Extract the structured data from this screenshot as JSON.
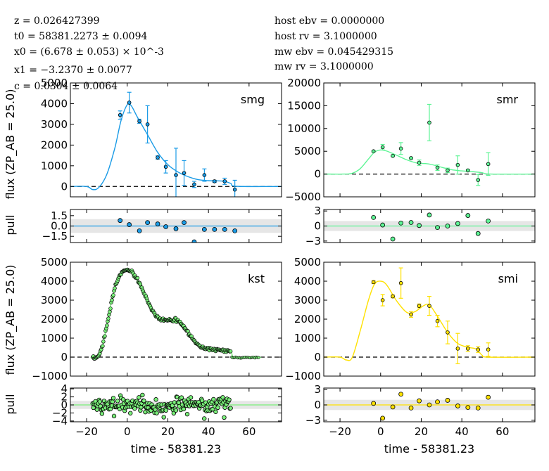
{
  "info": {
    "left": [
      "z = 0.026427399",
      "t0 = 58381.2273 ± 0.0094",
      "x0 = (6.678 ± 0.053) × 10^-3",
      "x1 = −3.2370 ± 0.0077",
      "c = 0.0304 ± 0.0064"
    ],
    "right": [
      "host ebv = 0.0000000",
      "host rv = 3.1000000",
      "mw ebv = 0.045429315",
      "mw rv = 3.1000000"
    ]
  },
  "labels": {
    "flux_ylabel": "flux (ZP_AB = 25.0)",
    "pull_ylabel": "pull",
    "xlabel": "time - 58381.23"
  },
  "chart_data": [
    {
      "type": "scatter",
      "band": "smg",
      "color": "#1a9be6",
      "xlim": [
        -28,
        76
      ],
      "xticks": [
        -20,
        0,
        20,
        40,
        60
      ],
      "ylim": [
        -500,
        5000
      ],
      "yticks": [
        0,
        1000,
        2000,
        3000,
        4000,
        5000
      ],
      "points": [
        {
          "x": -3.5,
          "y": 3450,
          "err": 200
        },
        {
          "x": 1,
          "y": 4050,
          "err": 500
        },
        {
          "x": 6,
          "y": 3150,
          "err": 100
        },
        {
          "x": 10,
          "y": 3000,
          "err": 900
        },
        {
          "x": 15,
          "y": 1400,
          "err": 80
        },
        {
          "x": 19,
          "y": 950,
          "err": 300
        },
        {
          "x": 24,
          "y": 550,
          "err": 1300
        },
        {
          "x": 28,
          "y": 650,
          "err": 600
        },
        {
          "x": 33,
          "y": 100,
          "err": 150
        },
        {
          "x": 38,
          "y": 550,
          "err": 300
        },
        {
          "x": 43,
          "y": 250,
          "err": 50
        },
        {
          "x": 48,
          "y": 250,
          "err": 150
        },
        {
          "x": 53,
          "y": -150,
          "err": 450
        }
      ],
      "model": [
        [
          -28,
          0
        ],
        [
          -20,
          0
        ],
        [
          -17,
          -150
        ],
        [
          -14,
          -50
        ],
        [
          -10,
          600
        ],
        [
          -6,
          1900
        ],
        [
          -3,
          3200
        ],
        [
          0,
          3950
        ],
        [
          2,
          3900
        ],
        [
          5,
          3350
        ],
        [
          10,
          2500
        ],
        [
          15,
          1650
        ],
        [
          20,
          1050
        ],
        [
          25,
          700
        ],
        [
          30,
          470
        ],
        [
          35,
          330
        ],
        [
          40,
          280
        ],
        [
          45,
          270
        ],
        [
          48,
          250
        ],
        [
          51,
          150
        ],
        [
          54,
          10
        ],
        [
          76,
          0
        ]
      ],
      "pulls": [
        {
          "x": -3.5,
          "y": 0.8
        },
        {
          "x": 1,
          "y": 0.2
        },
        {
          "x": 6,
          "y": -0.7
        },
        {
          "x": 10,
          "y": 0.5
        },
        {
          "x": 15,
          "y": 0.3
        },
        {
          "x": 19,
          "y": -0.1
        },
        {
          "x": 24,
          "y": -0.4
        },
        {
          "x": 28,
          "y": 0.5
        },
        {
          "x": 33,
          "y": -2.3
        },
        {
          "x": 38,
          "y": -0.5
        },
        {
          "x": 43,
          "y": -0.5
        },
        {
          "x": 48,
          "y": -0.5
        },
        {
          "x": 53,
          "y": -0.7
        }
      ],
      "pull_ylim": [
        -2.4,
        2.4
      ],
      "pull_yticks": [
        -1.5,
        0.0,
        1.5
      ]
    },
    {
      "type": "scatter",
      "band": "smr",
      "color": "#5ef595",
      "xlim": [
        -28,
        76
      ],
      "xticks": [
        -20,
        0,
        20,
        40,
        60
      ],
      "ylim": [
        -5000,
        20000
      ],
      "yticks": [
        -5000,
        0,
        5000,
        10000,
        15000,
        20000
      ],
      "points": [
        {
          "x": -3.5,
          "y": 5000,
          "err": 150
        },
        {
          "x": 1,
          "y": 5900,
          "err": 600
        },
        {
          "x": 6,
          "y": 4000,
          "err": 200
        },
        {
          "x": 10,
          "y": 5600,
          "err": 1300
        },
        {
          "x": 15,
          "y": 3500,
          "err": 200
        },
        {
          "x": 19,
          "y": 2500,
          "err": 600
        },
        {
          "x": 24,
          "y": 11300,
          "err": 4000
        },
        {
          "x": 28,
          "y": 1400,
          "err": 600
        },
        {
          "x": 33,
          "y": 800,
          "err": 500
        },
        {
          "x": 38,
          "y": 2000,
          "err": 2000
        },
        {
          "x": 43,
          "y": 800,
          "err": 200
        },
        {
          "x": 48,
          "y": -1300,
          "err": 1200
        },
        {
          "x": 53,
          "y": 2200,
          "err": 2500
        }
      ],
      "model": [
        [
          -28,
          0
        ],
        [
          -18,
          0
        ],
        [
          -14,
          150
        ],
        [
          -10,
          1200
        ],
        [
          -6,
          3300
        ],
        [
          -3,
          4800
        ],
        [
          0,
          5300
        ],
        [
          3,
          5050
        ],
        [
          8,
          4100
        ],
        [
          13,
          3100
        ],
        [
          18,
          2400
        ],
        [
          22,
          2300
        ],
        [
          25,
          2100
        ],
        [
          30,
          1500
        ],
        [
          35,
          950
        ],
        [
          40,
          700
        ],
        [
          45,
          550
        ],
        [
          50,
          300
        ],
        [
          54,
          0
        ],
        [
          76,
          0
        ]
      ],
      "pulls": [
        {
          "x": -3.5,
          "y": 1.7
        },
        {
          "x": 1,
          "y": 0.2
        },
        {
          "x": 6,
          "y": -2.6
        },
        {
          "x": 10,
          "y": 0.6
        },
        {
          "x": 15,
          "y": 0.7
        },
        {
          "x": 19,
          "y": 0.1
        },
        {
          "x": 24,
          "y": 2.2
        },
        {
          "x": 28,
          "y": -0.3
        },
        {
          "x": 33,
          "y": 0.0
        },
        {
          "x": 38,
          "y": 0.5
        },
        {
          "x": 43,
          "y": 2.1
        },
        {
          "x": 48,
          "y": -1.5
        },
        {
          "x": 53,
          "y": 1.0
        }
      ],
      "pull_ylim": [
        -3.3,
        3.3
      ],
      "pull_yticks": [
        -3.0,
        0.0,
        3.0
      ]
    },
    {
      "type": "scatter",
      "band": "kst",
      "color": "#7af07a",
      "xlim": [
        -28,
        76
      ],
      "xticks": [
        -20,
        0,
        20,
        40,
        60
      ],
      "ylim": [
        -1000,
        5000
      ],
      "yticks": [
        -1000,
        0,
        1000,
        2000,
        3000,
        4000,
        5000
      ],
      "model": [
        [
          -18,
          0
        ],
        [
          -16,
          -100
        ],
        [
          -14,
          60
        ],
        [
          -12,
          700
        ],
        [
          -10,
          1700
        ],
        [
          -8,
          2800
        ],
        [
          -6,
          3700
        ],
        [
          -4,
          4250
        ],
        [
          -2,
          4550
        ],
        [
          0,
          4600
        ],
        [
          2,
          4500
        ],
        [
          4,
          4250
        ],
        [
          6,
          3900
        ],
        [
          8,
          3450
        ],
        [
          10,
          2950
        ],
        [
          12,
          2500
        ],
        [
          14,
          2200
        ],
        [
          16,
          2020
        ],
        [
          18,
          1960
        ],
        [
          20,
          1960
        ],
        [
          22,
          1980
        ],
        [
          24,
          1950
        ],
        [
          26,
          1850
        ],
        [
          28,
          1600
        ],
        [
          30,
          1300
        ],
        [
          32,
          1000
        ],
        [
          34,
          750
        ],
        [
          36,
          560
        ],
        [
          38,
          460
        ],
        [
          40,
          410
        ],
        [
          44,
          390
        ],
        [
          48,
          350
        ],
        [
          51,
          300
        ],
        [
          52,
          30
        ],
        [
          54,
          -20
        ],
        [
          66,
          -20
        ]
      ],
      "noise": 40,
      "pull_ylim": [
        -4.2,
        4.2
      ],
      "pull_yticks": [
        -4,
        -2,
        0,
        2,
        4
      ]
    },
    {
      "type": "scatter",
      "band": "smi",
      "color": "#ffe100",
      "xlim": [
        -28,
        76
      ],
      "xticks": [
        -20,
        0,
        20,
        40,
        60
      ],
      "ylim": [
        -1000,
        5000
      ],
      "yticks": [
        -1000,
        0,
        1000,
        2000,
        3000,
        4000,
        5000
      ],
      "points": [
        {
          "x": -3.5,
          "y": 3950,
          "err": 80
        },
        {
          "x": 1,
          "y": 3000,
          "err": 300
        },
        {
          "x": 6,
          "y": 3200,
          "err": 80
        },
        {
          "x": 10,
          "y": 3900,
          "err": 800
        },
        {
          "x": 15,
          "y": 2250,
          "err": 150
        },
        {
          "x": 19,
          "y": 2700,
          "err": 100
        },
        {
          "x": 24,
          "y": 2700,
          "err": 500
        },
        {
          "x": 28,
          "y": 1900,
          "err": 300
        },
        {
          "x": 33,
          "y": 1300,
          "err": 600
        },
        {
          "x": 38,
          "y": 450,
          "err": 800
        },
        {
          "x": 43,
          "y": 450,
          "err": 150
        },
        {
          "x": 48,
          "y": 400,
          "err": 150
        },
        {
          "x": 53,
          "y": 400,
          "err": 350
        }
      ],
      "model": [
        [
          -28,
          0
        ],
        [
          -20,
          0
        ],
        [
          -17,
          -150
        ],
        [
          -14,
          -20
        ],
        [
          -10,
          1400
        ],
        [
          -6,
          3000
        ],
        [
          -3,
          3850
        ],
        [
          0,
          4000
        ],
        [
          3,
          3800
        ],
        [
          8,
          2950
        ],
        [
          13,
          2350
        ],
        [
          17,
          2400
        ],
        [
          21,
          2700
        ],
        [
          24,
          2750
        ],
        [
          28,
          2150
        ],
        [
          33,
          1300
        ],
        [
          38,
          720
        ],
        [
          43,
          520
        ],
        [
          47,
          430
        ],
        [
          50,
          100
        ],
        [
          53,
          0
        ],
        [
          76,
          0
        ]
      ],
      "pulls": [
        {
          "x": -3.5,
          "y": 0.3
        },
        {
          "x": 1,
          "y": -2.6
        },
        {
          "x": 6,
          "y": -0.4
        },
        {
          "x": 10,
          "y": 2.1
        },
        {
          "x": 15,
          "y": -0.6
        },
        {
          "x": 19,
          "y": 0.8
        },
        {
          "x": 24,
          "y": 0.0
        },
        {
          "x": 28,
          "y": 0.6
        },
        {
          "x": 33,
          "y": 0.9
        },
        {
          "x": 38,
          "y": -0.2
        },
        {
          "x": 43,
          "y": -0.5
        },
        {
          "x": 48,
          "y": -0.6
        },
        {
          "x": 53,
          "y": 1.5
        }
      ],
      "pull_ylim": [
        -3.3,
        3.3
      ],
      "pull_yticks": [
        -3.0,
        0.0,
        3.0
      ]
    }
  ]
}
